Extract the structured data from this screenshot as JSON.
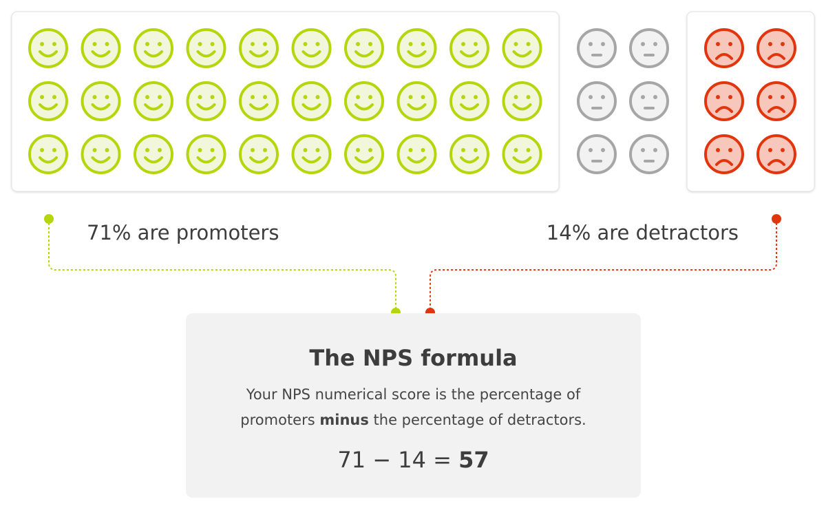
{
  "promoters_label": "71% are promoters",
  "detractors_label": "14% are detractors",
  "formula_box": {
    "title": "The NPS formula",
    "line1": "Your NPS numerical score is the percentage of",
    "line2_start": "promoters",
    "line2_bold": "minus",
    "line2_end": "the percentage of detractors.",
    "equation": "71 − 14 =",
    "result": "57"
  }
}
